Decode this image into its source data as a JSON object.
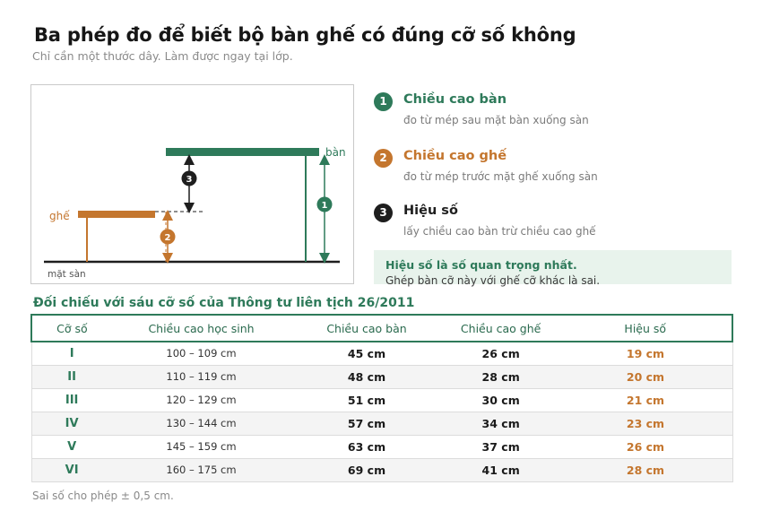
{
  "title": "Ba phép đo để biết bộ bàn ghế có đúng cỡ số không",
  "subtitle": "Chỉ cần một thước dây. Làm được ngay tại lớp.",
  "colors": {
    "green": "#2e7a5a",
    "orange": "#c4762e",
    "dark": "#1e1e1e"
  },
  "diagram": {
    "table_label": "bàn",
    "chair_label": "ghế",
    "floor_label": "mặt sàn",
    "marker_1": "1",
    "marker_2": "2",
    "marker_3": "3"
  },
  "steps": [
    {
      "num": "1",
      "title": "Chiều cao bàn",
      "desc": "đo từ mép sau mặt bàn xuống sàn"
    },
    {
      "num": "2",
      "title": "Chiều cao ghế",
      "desc": "đo từ mép trước mặt ghế xuống sàn"
    },
    {
      "num": "3",
      "title": "Hiệu số",
      "desc": "lấy chiều cao bàn trừ chiều cao ghế"
    }
  ],
  "note": {
    "title": "Hiệu số là số quan trọng nhất.",
    "text": "Ghép bàn cỡ này với ghế cỡ khác là sai."
  },
  "table": {
    "title": "Đối chiếu với sáu cỡ số của Thông tư liên tịch 26/2011",
    "headers": [
      "Cỡ số",
      "Chiều cao học sinh",
      "Chiều cao bàn",
      "Chiều cao ghế",
      "Hiệu số"
    ],
    "rows": [
      [
        "I",
        "100 – 109 cm",
        "45 cm",
        "26 cm",
        "19 cm"
      ],
      [
        "II",
        "110 – 119 cm",
        "48 cm",
        "28 cm",
        "20 cm"
      ],
      [
        "III",
        "120 – 129 cm",
        "51 cm",
        "30 cm",
        "21 cm"
      ],
      [
        "IV",
        "130 – 144 cm",
        "57 cm",
        "34 cm",
        "23 cm"
      ],
      [
        "V",
        "145 – 159 cm",
        "63 cm",
        "37 cm",
        "26 cm"
      ],
      [
        "VI",
        "160 – 175 cm",
        "69 cm",
        "41 cm",
        "28 cm"
      ]
    ]
  },
  "footnote": "Sai số cho phép ± 0,5 cm."
}
